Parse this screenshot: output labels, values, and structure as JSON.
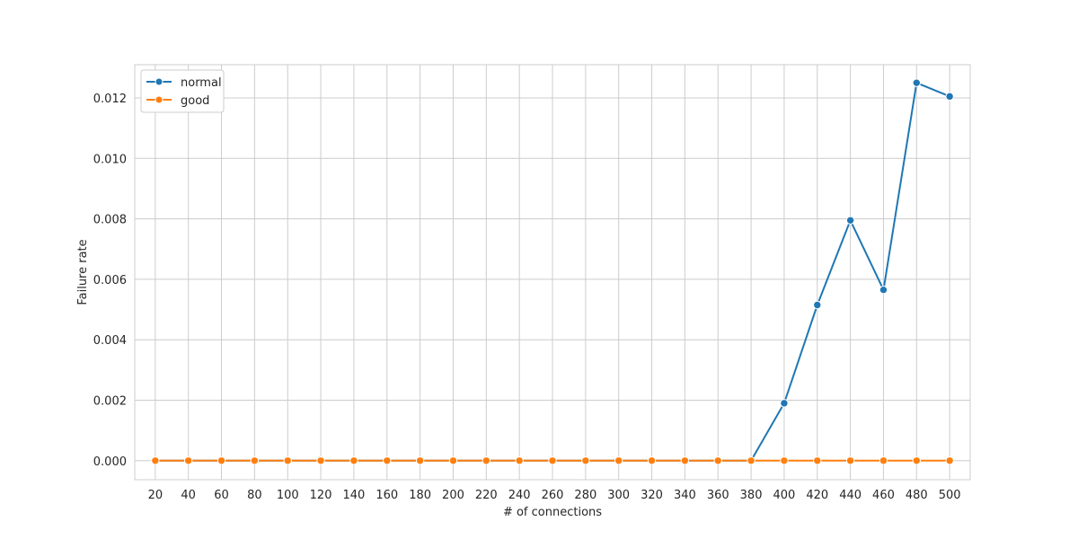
{
  "chart_data": {
    "type": "line",
    "title": "",
    "xlabel": "# of connections",
    "ylabel": "Failure rate",
    "x": [
      20,
      40,
      60,
      80,
      100,
      120,
      140,
      160,
      180,
      200,
      220,
      240,
      260,
      280,
      300,
      320,
      340,
      360,
      380,
      400,
      420,
      440,
      460,
      480,
      500
    ],
    "xticks": [
      "20",
      "40",
      "60",
      "80",
      "100",
      "120",
      "140",
      "160",
      "180",
      "200",
      "220",
      "240",
      "260",
      "280",
      "300",
      "320",
      "340",
      "360",
      "380",
      "400",
      "420",
      "440",
      "460",
      "480",
      "500"
    ],
    "ylim": [
      -0.00063,
      0.0131
    ],
    "yticks": [
      "0.000",
      "0.002",
      "0.004",
      "0.006",
      "0.008",
      "0.010",
      "0.012"
    ],
    "ytick_values": [
      0.0,
      0.002,
      0.004,
      0.006,
      0.008,
      0.01,
      0.012
    ],
    "grid": true,
    "legend_position": "top-left",
    "series": [
      {
        "name": "normal",
        "color": "#1f77b4",
        "marker": "circle",
        "values": [
          0,
          0,
          0,
          0,
          0,
          0,
          0,
          0,
          0,
          0,
          0,
          0,
          0,
          0,
          0,
          0,
          0,
          0,
          0,
          0.0019,
          0.00515,
          0.00795,
          0.00565,
          0.0125,
          0.01205
        ]
      },
      {
        "name": "good",
        "color": "#ff7f0e",
        "marker": "circle",
        "values": [
          0,
          0,
          0,
          0,
          0,
          0,
          0,
          0,
          0,
          0,
          0,
          0,
          0,
          0,
          0,
          0,
          0,
          0,
          0,
          0,
          0,
          0,
          0,
          0,
          0
        ]
      }
    ]
  }
}
